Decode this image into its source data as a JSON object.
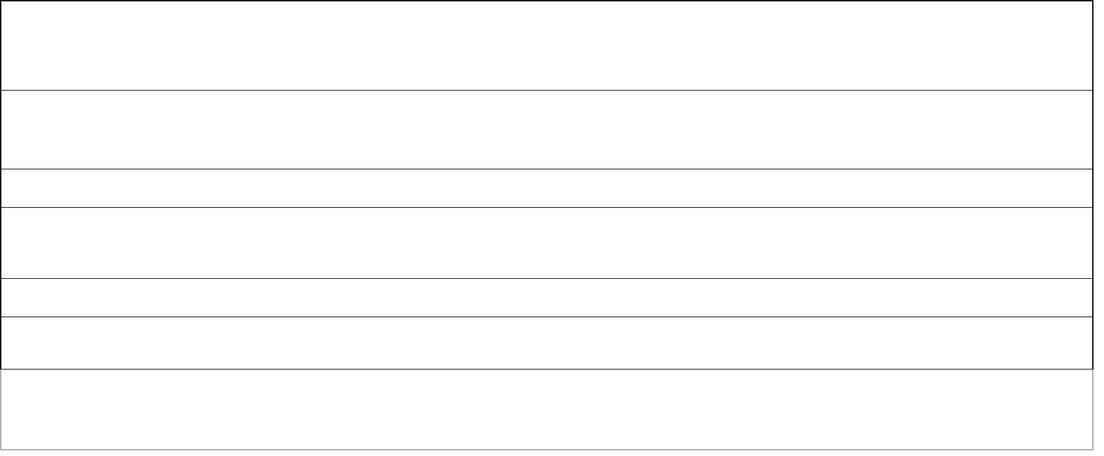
{
  "table": {
    "rows": [
      [
        "",
        "",
        ""
      ],
      [
        "",
        "",
        ""
      ],
      [
        "",
        "",
        ""
      ],
      [
        "",
        "",
        ""
      ],
      [
        "",
        "",
        ""
      ],
      [
        "",
        "",
        ""
      ],
      [
        "",
        "",
        ""
      ],
      [
        "",
        "",
        ""
      ]
    ],
    "border_color": "#1a1a1a",
    "faded_border_color": "#b0b0b0"
  }
}
